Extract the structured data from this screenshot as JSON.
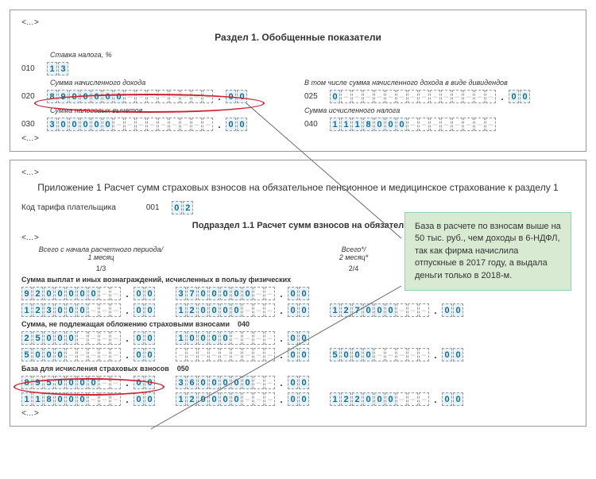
{
  "panel1": {
    "ell_top": "<…>",
    "title": "Раздел 1. Обобщенные показатели",
    "rate_label": "Ставка налога, %",
    "rate_code": "010",
    "rate_val": [
      "1",
      "3"
    ],
    "line020": {
      "code": "020",
      "label": "Сумма начисленного дохода",
      "int": [
        "8",
        "9",
        "0",
        "0",
        "0",
        "0",
        "0",
        "-",
        "-",
        "-",
        "-",
        "-",
        "-",
        "-",
        "-"
      ],
      "dec": [
        "0",
        "0"
      ]
    },
    "line025": {
      "code": "025",
      "label": "В том числе сумма начисленного дохода в виде дивидендов",
      "int": [
        "0",
        "-",
        "-",
        "-",
        "-",
        "-",
        "-",
        "-",
        "-",
        "-",
        "-",
        "-",
        "-",
        "-",
        "-"
      ],
      "dec": [
        "0",
        "0"
      ]
    },
    "line030": {
      "code": "030",
      "label": "Сумма налоговых вычетов",
      "int": [
        "3",
        "0",
        "0",
        "0",
        "0",
        "0",
        "-",
        "-",
        "-",
        "-",
        "-",
        "-",
        "-",
        "-",
        "-"
      ],
      "dec": [
        "0",
        "0"
      ]
    },
    "line040": {
      "code": "040",
      "label": "Сумма исчисленного налога",
      "int": [
        "1",
        "1",
        "1",
        "8",
        "0",
        "0",
        "0",
        "-",
        "-",
        "-",
        "-",
        "-",
        "-",
        "-",
        "-"
      ]
    },
    "ell_bot": "<…>"
  },
  "panel2": {
    "ell_top": "<…>",
    "title": "Приложение 1 Расчет сумм страховых взносов на обязательное пенсионное и медицинское страхование к разделу 1",
    "tariff_label": "Код тарифа плательщика",
    "tariff_code": "001",
    "tariff_val": [
      "0",
      "2"
    ],
    "sub_title": "Подраздел 1.1 Расчет сумм взносов на обязател",
    "ell_mid": "<…>",
    "period_label": "Всего с начала расчетного периода/\n1 месяц",
    "period_c2": "Всего*/\n2 месяц*",
    "c1_foot": "1/3",
    "c2_foot": "2/4",
    "r030_label": "Сумма выплат и иных вознаграждений, исчисленных в пользу физических",
    "r030": {
      "a_int": [
        "9",
        "2",
        "0",
        "0",
        "0",
        "0",
        "0",
        "-",
        "-"
      ],
      "a_dec": [
        "0",
        "0"
      ],
      "b_int": [
        "3",
        "7",
        "0",
        "0",
        "0",
        "0",
        "0",
        "-",
        "-"
      ],
      "b_dec": [
        "0",
        "0"
      ],
      "c_int": [
        "1",
        "2",
        "3",
        "0",
        "0",
        "0",
        "-",
        "-",
        "-"
      ],
      "c_dec": [
        "0",
        "0"
      ],
      "d_int": [
        "1",
        "2",
        "0",
        "0",
        "0",
        "0",
        "-",
        "-",
        "-"
      ],
      "d_dec": [
        "0",
        "0"
      ],
      "e_int": [
        "1",
        "2",
        "7",
        "0",
        "0",
        "0",
        "-",
        "-",
        "-"
      ],
      "e_dec": [
        "0",
        "0"
      ]
    },
    "r040_label": "Сумма, не подлежащая обложению страховыми взносами",
    "r040_code": "040",
    "r040": {
      "a_int": [
        "2",
        "5",
        "0",
        "0",
        "0",
        "-",
        "-",
        "-",
        "-"
      ],
      "a_dec": [
        "0",
        "0"
      ],
      "b_int": [
        "1",
        "0",
        "0",
        "0",
        "0",
        "-",
        "-",
        "-",
        "-"
      ],
      "b_dec": [
        "0",
        "0"
      ],
      "c_int": [
        "5",
        "0",
        "0",
        "0",
        "-",
        "-",
        "-",
        "-",
        "-"
      ],
      "c_dec": [
        "0",
        "0"
      ],
      "d_int": [
        "-",
        "-",
        "-",
        "-",
        "-",
        "-",
        "-",
        "-",
        "-"
      ],
      "d_dec": [
        "0",
        "0"
      ],
      "e_int": [
        "5",
        "0",
        "0",
        "0",
        "-",
        "-",
        "-",
        "-",
        "-"
      ],
      "e_dec": [
        "0",
        "0"
      ]
    },
    "r050_label": "База для исчисления страховых взносов",
    "r050_code": "050",
    "r050": {
      "a_int": [
        "8",
        "9",
        "5",
        "0",
        "0",
        "0",
        "0",
        "-",
        "-"
      ],
      "a_dec": [
        "0",
        "0"
      ],
      "b_int": [
        "3",
        "6",
        "0",
        "0",
        "0",
        "0",
        "0",
        "-",
        "-"
      ],
      "b_dec": [
        "0",
        "0"
      ],
      "c_int": [
        "1",
        "1",
        "8",
        "0",
        "0",
        "0",
        "-",
        "-",
        "-"
      ],
      "c_dec": [
        "0",
        "0"
      ],
      "d_int": [
        "1",
        "2",
        "0",
        "0",
        "0",
        "0",
        "-",
        "-",
        "-"
      ],
      "d_dec": [
        "0",
        "0"
      ],
      "e_int": [
        "1",
        "2",
        "2",
        "0",
        "0",
        "0",
        "-",
        "-",
        "-"
      ],
      "e_dec": [
        "0",
        "0"
      ]
    },
    "ell_bot": "<…>"
  },
  "note_text": "База в расчете по взносам выше на 50 тыс. руб., чем доходы в 6-НДФЛ, так как фирма начислила отпускные в 2017 году, а выдала деньги только в 2018-м.",
  "colors": {
    "highlight": "#e6f3f9",
    "digit": "#1a6a8a",
    "oval": "#c23",
    "note_bg": "#d9ead3"
  }
}
